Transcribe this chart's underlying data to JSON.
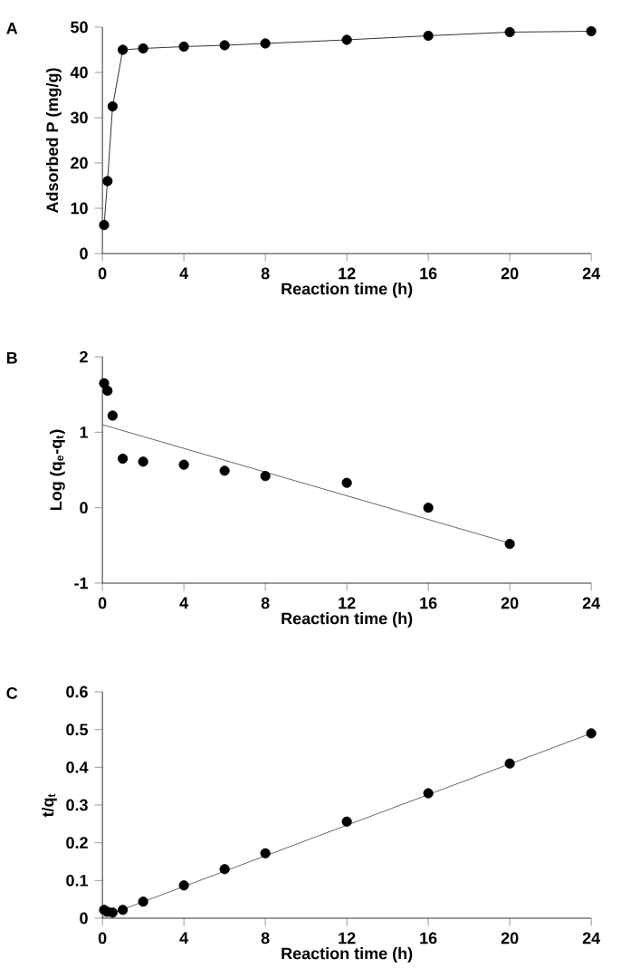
{
  "chart_data": [
    {
      "type": "line",
      "title": "A",
      "xlabel": "Reaction time (h)",
      "ylabel": "Adsorbed P (mg/g)",
      "x": [
        0.083,
        0.25,
        0.5,
        1,
        2,
        4,
        6,
        8,
        12,
        16,
        20,
        24
      ],
      "xlim": [
        0,
        24
      ],
      "xticks": [
        0,
        4,
        8,
        12,
        16,
        20,
        24
      ],
      "ylim": [
        0,
        50
      ],
      "yticks": [
        0,
        10,
        20,
        30,
        40,
        50
      ],
      "marker": "circle",
      "series": [
        {
          "color": "#000000",
          "values": [
            6.3,
            16,
            32.5,
            45,
            45.3,
            45.7,
            46,
            46.4,
            47.2,
            48.1,
            48.9,
            49.1
          ]
        }
      ]
    },
    {
      "type": "scatter",
      "title": "B",
      "xlabel": "Reaction time (h)",
      "ylabel": "Log (q$_{e}$-q$_{t}$)",
      "x": [
        0.083,
        0.25,
        0.5,
        1,
        2,
        4,
        6,
        8,
        12,
        16,
        20
      ],
      "xlim": [
        0,
        24
      ],
      "xticks": [
        0,
        4,
        8,
        12,
        16,
        20,
        24
      ],
      "ylim": [
        -1,
        2
      ],
      "yticks": [
        -1,
        0,
        1,
        2
      ],
      "marker": "circle",
      "series": [
        {
          "color": "#000000",
          "values": [
            1.65,
            1.55,
            1.22,
            0.65,
            0.61,
            0.57,
            0.49,
            0.42,
            0.33,
            0.0,
            -0.48
          ]
        },
        {
          "type": "line",
          "marker": "none",
          "color": "#404040",
          "x": [
            0,
            20
          ],
          "values": [
            1.1,
            -0.47
          ]
        }
      ]
    },
    {
      "type": "scatter",
      "title": "C",
      "xlabel": "Reaction time (h)",
      "ylabel": "t/q$_{t}$",
      "x": [
        0.083,
        0.25,
        0.5,
        1,
        2,
        4,
        6,
        8,
        12,
        16,
        20,
        24
      ],
      "xlim": [
        0,
        24
      ],
      "xticks": [
        0,
        4,
        8,
        12,
        16,
        20,
        24
      ],
      "ylim": [
        0,
        0.6
      ],
      "yticks": [
        0,
        0.1,
        0.2,
        0.3,
        0.4,
        0.5,
        0.6
      ],
      "marker": "circle",
      "series": [
        {
          "color": "#000000",
          "values": [
            0.022,
            0.017,
            0.015,
            0.022,
            0.044,
            0.087,
            0.13,
            0.172,
            0.256,
            0.331,
            0.41,
            0.49
          ]
        },
        {
          "type": "line",
          "marker": "none",
          "color": "#404040",
          "x": [
            0,
            24
          ],
          "values": [
            0.003,
            0.49
          ]
        }
      ]
    }
  ]
}
